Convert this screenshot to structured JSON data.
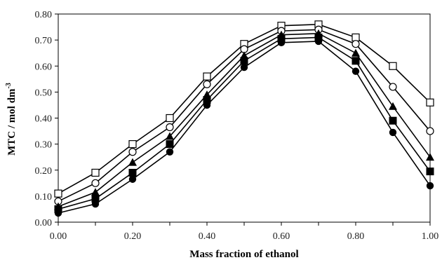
{
  "chart_data": {
    "type": "line",
    "title": "",
    "xlabel": "Mass fraction of ethanol",
    "ylabel": "MTC / mol dm",
    "ylabel_exponent": "-3",
    "xlim": [
      0.0,
      1.0
    ],
    "ylim": [
      0.0,
      0.8
    ],
    "x_ticks": [
      "0.00",
      "0.20",
      "0.40",
      "0.60",
      "0.80",
      "1.00"
    ],
    "y_ticks": [
      "0.00",
      "0.10",
      "0.20",
      "0.30",
      "0.40",
      "0.50",
      "0.60",
      "0.70",
      "0.80"
    ],
    "grid": false,
    "legend": "none",
    "x": [
      0.0,
      0.1,
      0.2,
      0.3,
      0.4,
      0.5,
      0.6,
      0.7,
      0.8,
      0.9,
      1.0
    ],
    "series": [
      {
        "marker": "open-square",
        "values": [
          0.11,
          0.19,
          0.3,
          0.4,
          0.56,
          0.685,
          0.755,
          0.76,
          0.71,
          0.6,
          0.46
        ]
      },
      {
        "marker": "open-circle",
        "values": [
          0.08,
          0.15,
          0.27,
          0.365,
          0.53,
          0.665,
          0.735,
          0.74,
          0.685,
          0.52,
          0.35
        ]
      },
      {
        "marker": "filled-triangle",
        "values": [
          0.06,
          0.115,
          0.23,
          0.33,
          0.49,
          0.64,
          0.72,
          0.725,
          0.65,
          0.445,
          0.25
        ]
      },
      {
        "marker": "filled-square",
        "values": [
          0.05,
          0.09,
          0.19,
          0.3,
          0.47,
          0.62,
          0.705,
          0.71,
          0.62,
          0.39,
          0.195
        ]
      },
      {
        "marker": "filled-circle",
        "values": [
          0.035,
          0.07,
          0.165,
          0.27,
          0.45,
          0.595,
          0.69,
          0.695,
          0.58,
          0.345,
          0.14
        ]
      }
    ]
  }
}
